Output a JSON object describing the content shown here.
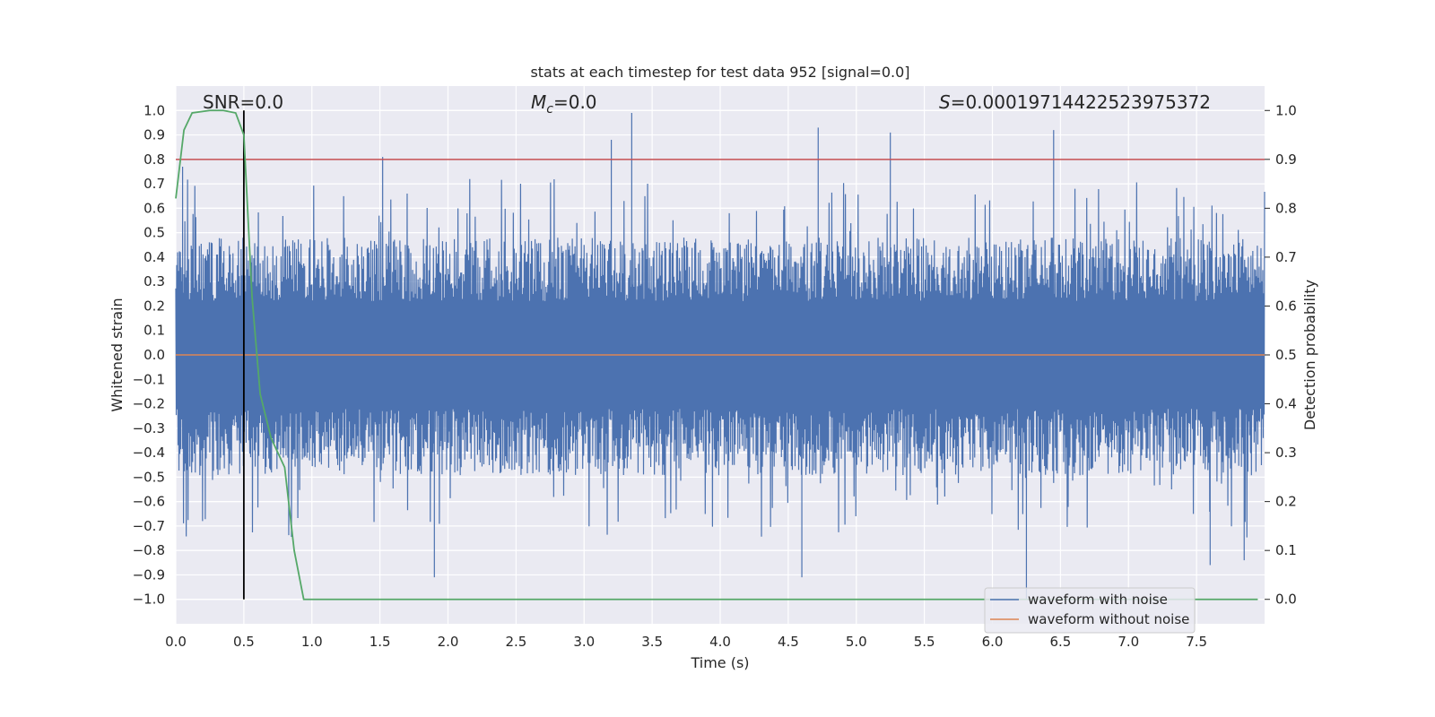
{
  "chart_data": {
    "type": "line",
    "title": "stats at each timestep for test data 952 [signal=0.0]",
    "xlabel": "Time (s)",
    "ylabel": "Whitened strain",
    "ylabel_right": "Detection probability",
    "xlim": [
      0.0,
      8.0
    ],
    "ylim": [
      -1.1,
      1.1
    ],
    "ylim_right": [
      -0.05,
      1.05
    ],
    "grid": true,
    "x_ticks": [
      "0.0",
      "0.5",
      "1.0",
      "1.5",
      "2.0",
      "2.5",
      "3.0",
      "3.5",
      "4.0",
      "4.5",
      "5.0",
      "5.5",
      "6.0",
      "6.5",
      "7.0",
      "7.5"
    ],
    "y_ticks": [
      "1.0",
      "0.9",
      "0.8",
      "0.7",
      "0.6",
      "0.5",
      "0.4",
      "0.3",
      "0.2",
      "0.1",
      "0.0",
      "−0.1",
      "−0.2",
      "−0.3",
      "−0.4",
      "−0.5",
      "−0.6",
      "−0.7",
      "−0.8",
      "−0.9",
      "−1.0"
    ],
    "y_ticks_right": [
      "1.0",
      "0.9",
      "0.8",
      "0.7",
      "0.6",
      "0.5",
      "0.4",
      "0.3",
      "0.2",
      "0.1",
      "0.0"
    ],
    "annotations": {
      "snr": "SNR=0.0",
      "mc_symbol": "M",
      "mc_sub": "c",
      "mc_value": "=0.0",
      "s_symbol": "S",
      "s_value": "=0.00019714422523975372"
    },
    "legend": {
      "position": "lower-right",
      "entries": [
        "waveform with noise",
        "waveform without noise"
      ]
    },
    "series": [
      {
        "name": "waveform with noise",
        "color": "#4c72b0",
        "kind": "noise",
        "x_range": [
          0.0,
          8.0
        ],
        "upper_typical": 0.42,
        "lower_typical": -0.43,
        "spikes": [
          {
            "x": 0.05,
            "y": 0.77
          },
          {
            "x": 1.52,
            "y": 0.81
          },
          {
            "x": 3.2,
            "y": 0.88
          },
          {
            "x": 3.35,
            "y": 0.99
          },
          {
            "x": 4.72,
            "y": 0.93
          },
          {
            "x": 5.25,
            "y": 0.91
          },
          {
            "x": 6.45,
            "y": 0.92
          },
          {
            "x": 1.9,
            "y": -0.91
          },
          {
            "x": 4.6,
            "y": -0.91
          },
          {
            "x": 6.25,
            "y": -1.0
          },
          {
            "x": 7.6,
            "y": -0.86
          },
          {
            "x": 7.85,
            "y": -0.84
          }
        ]
      },
      {
        "name": "waveform without noise",
        "color": "#dd8452",
        "x": [
          0.0,
          8.0
        ],
        "y": [
          0.0,
          0.0
        ]
      },
      {
        "name": "Detection probability",
        "color": "#55a868",
        "axis": "right",
        "x": [
          0.0,
          0.06,
          0.12,
          0.25,
          0.35,
          0.44,
          0.5,
          0.56,
          0.62,
          0.7,
          0.8,
          0.87,
          0.94,
          1.0,
          2.0,
          3.0,
          4.0,
          5.0,
          6.0,
          7.0,
          7.95
        ],
        "y": [
          0.82,
          0.96,
          0.995,
          1.0,
          1.0,
          0.995,
          0.95,
          0.62,
          0.42,
          0.33,
          0.27,
          0.1,
          0.0,
          0.0,
          0.0,
          0.0,
          0.0,
          0.0,
          0.0,
          0.0,
          0.0
        ]
      }
    ],
    "threshold_line": {
      "color": "#c44e52",
      "y_right": 0.9
    },
    "marker_line": {
      "color": "#000000",
      "x": 0.5,
      "y_from": -1.0,
      "y_to": 1.0
    }
  }
}
